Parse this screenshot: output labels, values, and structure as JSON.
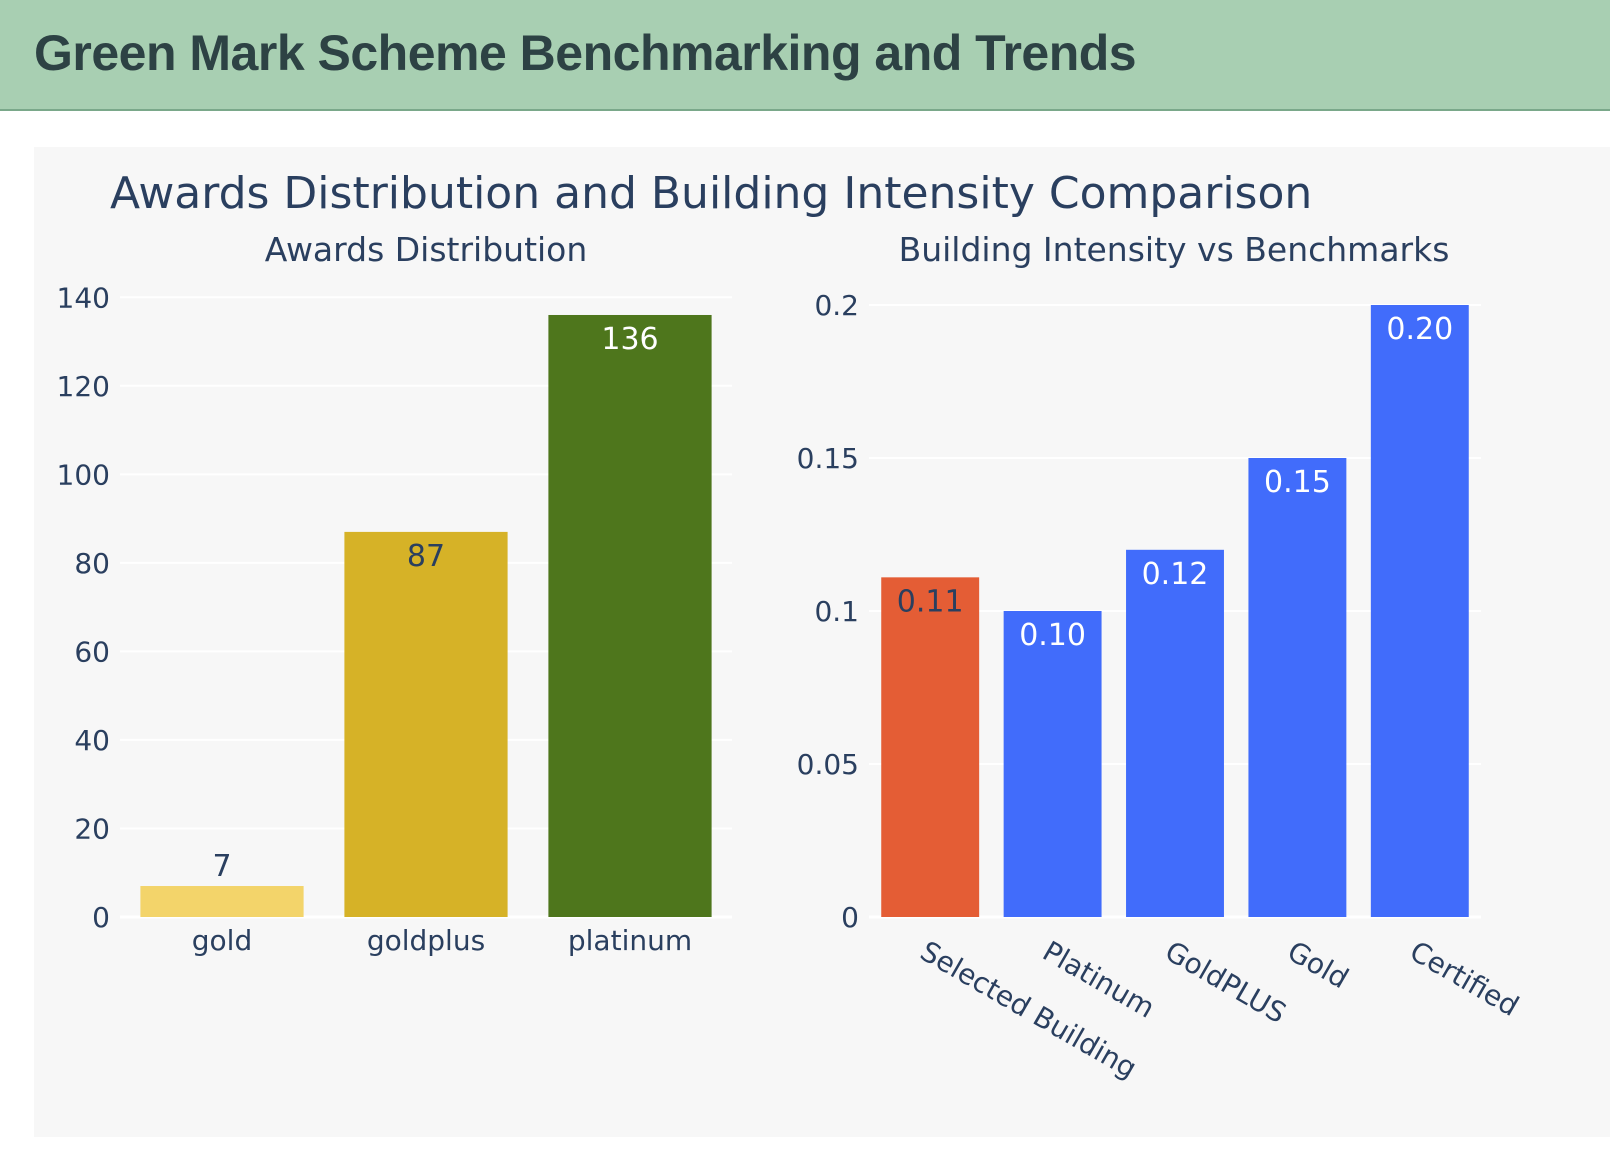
{
  "header": {
    "title": "Green Mark Scheme Benchmarking and Trends"
  },
  "figure": {
    "title": "Awards Distribution and Building Intensity Comparison",
    "background": "#f7f7f7"
  },
  "chart_data": [
    {
      "type": "bar",
      "title": "Awards Distribution",
      "xlabel": "",
      "ylabel": "",
      "categories": [
        "gold",
        "goldplus",
        "platinum"
      ],
      "values": [
        7,
        87,
        136
      ],
      "text": [
        "7",
        "87",
        "136"
      ],
      "colors": [
        "#f3d46a",
        "#d6b227",
        "#4e761c"
      ],
      "text_colors": [
        "#2a3f5f",
        "#2a3f5f",
        "#ffffff"
      ],
      "ylim": [
        0,
        143
      ],
      "yticks": [
        0,
        20,
        40,
        60,
        80,
        100,
        120,
        140
      ],
      "yticklabels": [
        "0",
        "20",
        "40",
        "60",
        "80",
        "100",
        "120",
        "140"
      ],
      "grid": true
    },
    {
      "type": "bar",
      "title": "Building Intensity vs Benchmarks",
      "xlabel": "",
      "ylabel": "",
      "categories": [
        "Selected Building",
        "Platinum",
        "GoldPLUS",
        "Gold",
        "Certified"
      ],
      "values": [
        0.111,
        0.1,
        0.12,
        0.15,
        0.2
      ],
      "text": [
        "0.11",
        "0.10",
        "0.12",
        "0.15",
        "0.20"
      ],
      "colors": [
        "#e45d35",
        "#416cfb",
        "#416cfb",
        "#416cfb",
        "#416cfb"
      ],
      "text_colors": [
        "#2a3f5f",
        "#ffffff",
        "#ffffff",
        "#ffffff",
        "#ffffff"
      ],
      "ylim": [
        0,
        0.2
      ],
      "yticks": [
        0,
        0.05,
        0.1,
        0.15,
        0.2
      ],
      "yticklabels": [
        "0",
        "0.05",
        "0.1",
        "0.15",
        "0.2"
      ],
      "tick_angle": 30,
      "grid": true
    }
  ]
}
